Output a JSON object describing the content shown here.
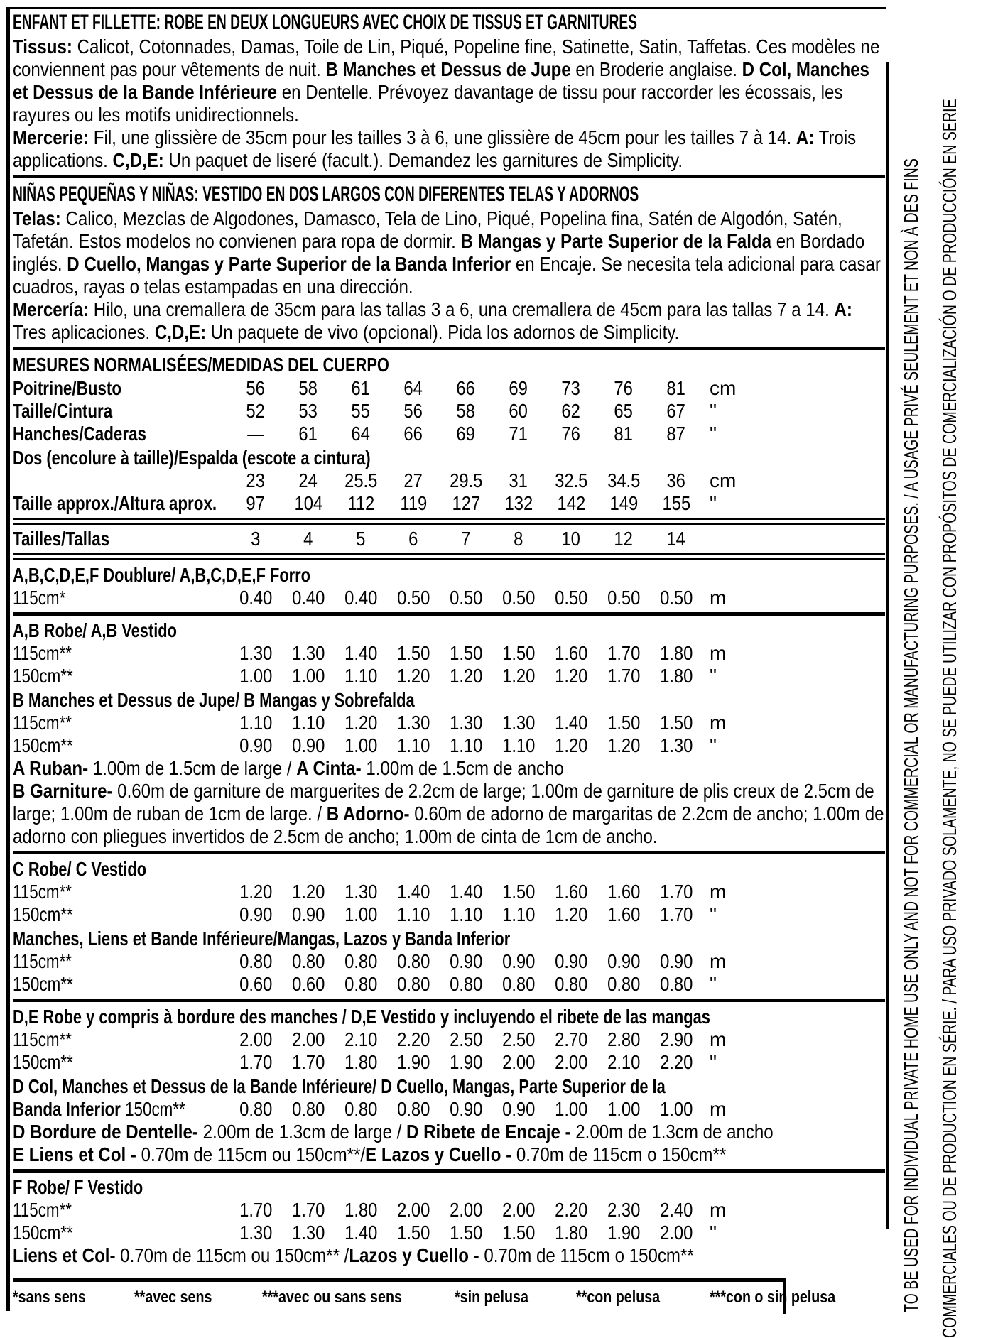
{
  "french": {
    "title": "ENFANT ET FILLETTE: ROBE EN DEUX LONGUEURS AVEC CHOIX DE TISSUS ET GARNITURES",
    "fabrics_runs": [
      {
        "b": 1,
        "t": "Tissus:"
      },
      {
        "b": 0,
        "t": " Calicot, Cotonnades, Damas, Toile de Lin, Piqué, Popeline fine, Satinette, Satin, Taffetas. Ces modèles ne conviennent pas pour vêtements de nuit. "
      },
      {
        "b": 1,
        "t": "B Manches et Dessus de Jupe"
      },
      {
        "b": 0,
        "t": " en Broderie anglaise. "
      },
      {
        "b": 1,
        "t": "D Col, Manches et Dessus de la Bande Inférieure"
      },
      {
        "b": 0,
        "t": " en Dentelle. Prévoyez davantage de tissu pour raccorder les écossais, les rayures ou les motifs unidirectionnels."
      }
    ],
    "notions_runs": [
      {
        "b": 1,
        "t": "Mercerie:"
      },
      {
        "b": 0,
        "t": " Fil, une glissière de 35cm pour les tailles 3 à 6, une glissière de 45cm pour les tailles 7 à 14. "
      },
      {
        "b": 1,
        "t": "A:"
      },
      {
        "b": 0,
        "t": " Trois applications. "
      },
      {
        "b": 1,
        "t": "C,D,E:"
      },
      {
        "b": 0,
        "t": " Un paquet de liseré (facult.). Demandez les garnitures de Simplicity."
      }
    ]
  },
  "spanish": {
    "title": "NIÑAS PEQUEÑAS Y NIÑAS: VESTIDO EN DOS LARGOS CON DIFERENTES TELAS Y ADORNOS",
    "fabrics_runs": [
      {
        "b": 1,
        "t": "Telas:"
      },
      {
        "b": 0,
        "t": " Calico, Mezclas de Algodones, Damasco, Tela de Lino, Piqué, Popelina fina, Satén de Algodón, Satén, Tafetán. Estos modelos no convienen para ropa de dormir. "
      },
      {
        "b": 1,
        "t": "B Mangas y Parte Superior de la Falda"
      },
      {
        "b": 0,
        "t": " en Bordado inglés. "
      },
      {
        "b": 1,
        "t": "D Cuello, Mangas y Parte Superior de la Banda Inferior"
      },
      {
        "b": 0,
        "t": " en Encaje. Se necesita tela adicional para casar cuadros, rayas o telas estampadas en una dirección."
      }
    ],
    "notions_runs": [
      {
        "b": 1,
        "t": "Mercería:"
      },
      {
        "b": 0,
        "t": " Hilo, una cremallera de 35cm para las tallas 3 a 6, una cremallera de 45cm para las tallas 7 a 14. "
      },
      {
        "b": 1,
        "t": "A:"
      },
      {
        "b": 0,
        "t": " Tres aplicaciones. "
      },
      {
        "b": 1,
        "t": "C,D,E:"
      },
      {
        "b": 0,
        "t": " Un paquete de vivo (opcional). Pida los adornos de Simplicity."
      }
    ]
  },
  "measurements": {
    "title": "MESURES NORMALISÉES/MEDIDAS DEL CUERPO",
    "rows": [
      {
        "label": "Poitrine/Busto",
        "values": [
          "56",
          "58",
          "61",
          "64",
          "66",
          "69",
          "73",
          "76",
          "81"
        ],
        "unit": "cm"
      },
      {
        "label": "Taille/Cintura",
        "values": [
          "52",
          "53",
          "55",
          "56",
          "58",
          "60",
          "62",
          "65",
          "67"
        ],
        "unit": "\""
      },
      {
        "label": "Hanches/Caderas",
        "values": [
          "—",
          "61",
          "64",
          "66",
          "69",
          "71",
          "76",
          "81",
          "87"
        ],
        "unit": "\""
      },
      {
        "label": "Dos (encolure à taille)/Espalda (escote a cintura)",
        "full": true
      },
      {
        "label": "",
        "values": [
          "23",
          "24",
          "25.5",
          "27",
          "29.5",
          "31",
          "32.5",
          "34.5",
          "36"
        ],
        "unit": "cm"
      },
      {
        "label": "Taille approx./Altura aprox.",
        "values": [
          "97",
          "104",
          "112",
          "119",
          "127",
          "132",
          "142",
          "149",
          "155"
        ],
        "unit": "\""
      }
    ]
  },
  "sizes": {
    "label": "Tailles/Tallas",
    "values": [
      "3",
      "4",
      "5",
      "6",
      "7",
      "8",
      "10",
      "12",
      "14"
    ],
    "unit": ""
  },
  "sections": [
    {
      "rows": [
        {
          "type": "header",
          "text": "A,B,C,D,E,F Doublure/ A,B,C,D,E,F Forro"
        },
        {
          "type": "data",
          "label": "115cm*",
          "values": [
            "0.40",
            "0.40",
            "0.40",
            "0.50",
            "0.50",
            "0.50",
            "0.50",
            "0.50",
            "0.50"
          ],
          "unit": "m"
        }
      ]
    },
    {
      "rows": [
        {
          "type": "header",
          "text": "A,B Robe/ A,B Vestido"
        },
        {
          "type": "data",
          "label": "115cm**",
          "values": [
            "1.30",
            "1.30",
            "1.40",
            "1.50",
            "1.50",
            "1.50",
            "1.60",
            "1.70",
            "1.80"
          ],
          "unit": "m"
        },
        {
          "type": "data",
          "label": "150cm**",
          "values": [
            "1.00",
            "1.00",
            "1.10",
            "1.20",
            "1.20",
            "1.20",
            "1.20",
            "1.70",
            "1.80"
          ],
          "unit": "\""
        },
        {
          "type": "header",
          "text": "B Manches et Dessus de Jupe/ B Mangas y Sobrefalda"
        },
        {
          "type": "data",
          "label": "115cm**",
          "values": [
            "1.10",
            "1.10",
            "1.20",
            "1.30",
            "1.30",
            "1.30",
            "1.40",
            "1.50",
            "1.50"
          ],
          "unit": "m"
        },
        {
          "type": "data",
          "label": "150cm**",
          "values": [
            "0.90",
            "0.90",
            "1.00",
            "1.10",
            "1.10",
            "1.10",
            "1.20",
            "1.20",
            "1.30"
          ],
          "unit": "\""
        },
        {
          "type": "note",
          "runs": [
            {
              "b": 1,
              "t": "A Ruban-"
            },
            {
              "b": 0,
              "t": " 1.00m de 1.5cm de large / "
            },
            {
              "b": 1,
              "t": "A Cinta-"
            },
            {
              "b": 0,
              "t": " 1.00m de 1.5cm de ancho"
            }
          ]
        },
        {
          "type": "note",
          "runs": [
            {
              "b": 1,
              "t": "B Garniture-"
            },
            {
              "b": 0,
              "t": " 0.60m de garniture de marguerites de 2.2cm de large; 1.00m de garniture de plis creux de 2.5cm de large; 1.00m de ruban de 1cm de large. / "
            },
            {
              "b": 1,
              "t": "B Adorno-"
            },
            {
              "b": 0,
              "t": " 0.60m de adorno de margaritas de 2.2cm de ancho; 1.00m de adorno con pliegues invertidos de 2.5cm de ancho; 1.00m de cinta de 1cm de ancho."
            }
          ]
        }
      ]
    },
    {
      "rows": [
        {
          "type": "header",
          "text": "C Robe/ C Vestido"
        },
        {
          "type": "data",
          "label": "115cm**",
          "values": [
            "1.20",
            "1.20",
            "1.30",
            "1.40",
            "1.40",
            "1.50",
            "1.60",
            "1.60",
            "1.70"
          ],
          "unit": "m"
        },
        {
          "type": "data",
          "label": "150cm**",
          "values": [
            "0.90",
            "0.90",
            "1.00",
            "1.10",
            "1.10",
            "1.10",
            "1.20",
            "1.60",
            "1.70"
          ],
          "unit": "\""
        },
        {
          "type": "header",
          "text": "Manches, Liens et Bande Inférieure/Mangas, Lazos y Banda Inferior"
        },
        {
          "type": "data",
          "label": "115cm**",
          "values": [
            "0.80",
            "0.80",
            "0.80",
            "0.80",
            "0.90",
            "0.90",
            "0.90",
            "0.90",
            "0.90"
          ],
          "unit": "m"
        },
        {
          "type": "data",
          "label": "150cm**",
          "values": [
            "0.60",
            "0.60",
            "0.80",
            "0.80",
            "0.80",
            "0.80",
            "0.80",
            "0.80",
            "0.80"
          ],
          "unit": "\""
        }
      ]
    },
    {
      "rows": [
        {
          "type": "header",
          "text": "D,E Robe y compris à bordure des manches / D,E Vestido y incluyendo el ribete de las mangas"
        },
        {
          "type": "data",
          "label": "115cm**",
          "values": [
            "2.00",
            "2.00",
            "2.10",
            "2.20",
            "2.50",
            "2.50",
            "2.70",
            "2.80",
            "2.90"
          ],
          "unit": "m"
        },
        {
          "type": "data",
          "label": "150cm**",
          "values": [
            "1.70",
            "1.70",
            "1.80",
            "1.90",
            "1.90",
            "2.00",
            "2.00",
            "2.10",
            "2.20"
          ],
          "unit": "\""
        },
        {
          "type": "header",
          "text": "D Col, Manches et Dessus de la Bande Inférieure/ D Cuello, Mangas, Parte Superior de la"
        },
        {
          "type": "data",
          "label_runs": [
            {
              "b": 1,
              "t": "Banda Inferior "
            },
            {
              "b": 0,
              "t": "150cm**"
            }
          ],
          "values": [
            "0.80",
            "0.80",
            "0.80",
            "0.80",
            "0.90",
            "0.90",
            "1.00",
            "1.00",
            "1.00"
          ],
          "unit": "m"
        },
        {
          "type": "note",
          "runs": [
            {
              "b": 1,
              "t": "D Bordure de Dentelle-"
            },
            {
              "b": 0,
              "t": " 2.00m de 1.3cm de large / "
            },
            {
              "b": 1,
              "t": "D Ribete de Encaje -"
            },
            {
              "b": 0,
              "t": " 2.00m de 1.3cm de ancho"
            }
          ]
        },
        {
          "type": "note",
          "runs": [
            {
              "b": 1,
              "t": "E Liens et Col -"
            },
            {
              "b": 0,
              "t": " 0.70m de 115cm ou 150cm**/"
            },
            {
              "b": 1,
              "t": "E Lazos y Cuello -"
            },
            {
              "b": 0,
              "t": " 0.70m de 115cm o 150cm**"
            }
          ]
        }
      ]
    },
    {
      "rows": [
        {
          "type": "header",
          "text": "F Robe/ F Vestido"
        },
        {
          "type": "data",
          "label": "115cm**",
          "values": [
            "1.70",
            "1.70",
            "1.80",
            "2.00",
            "2.00",
            "2.00",
            "2.20",
            "2.30",
            "2.40"
          ],
          "unit": "m"
        },
        {
          "type": "data",
          "label": "150cm**",
          "values": [
            "1.30",
            "1.30",
            "1.40",
            "1.50",
            "1.50",
            "1.50",
            "1.80",
            "1.90",
            "2.00"
          ],
          "unit": "\""
        },
        {
          "type": "note",
          "runs": [
            {
              "b": 1,
              "t": "Liens et Col-"
            },
            {
              "b": 0,
              "t": " 0.70m de 115cm ou 150cm** /"
            },
            {
              "b": 1,
              "t": "Lazos y Cuello -"
            },
            {
              "b": 0,
              "t": " 0.70m de 115cm o 150cm**"
            }
          ]
        }
      ]
    }
  ],
  "footnotes": {
    "french": [
      "*sans sens",
      "**avec sens",
      "***avec ou sans sens"
    ],
    "spanish": [
      "*sin pelusa",
      "**con pelusa",
      "***con o sin pelusa"
    ]
  },
  "vertical_text": {
    "line1": "TO BE USED FOR INDIVIDUAL PRIVATE HOME USE ONLY AND NOT FOR COMMERCIAL OR MANUFACTURING PURPOSES. / A USAGE PRIVÉ SEULEMENT ET NON À DES FINS",
    "line2": "COMMERCIALES OU DE PRODUCTION EN SÉRIE. / PARA USO PRIVADO SOLAMENTE, NO SE PUEDE UTILIZAR CON PROPÓSITOS DE COMERCIALIZACIÓN O DE PRODUCCIÓN EN SERIE"
  }
}
